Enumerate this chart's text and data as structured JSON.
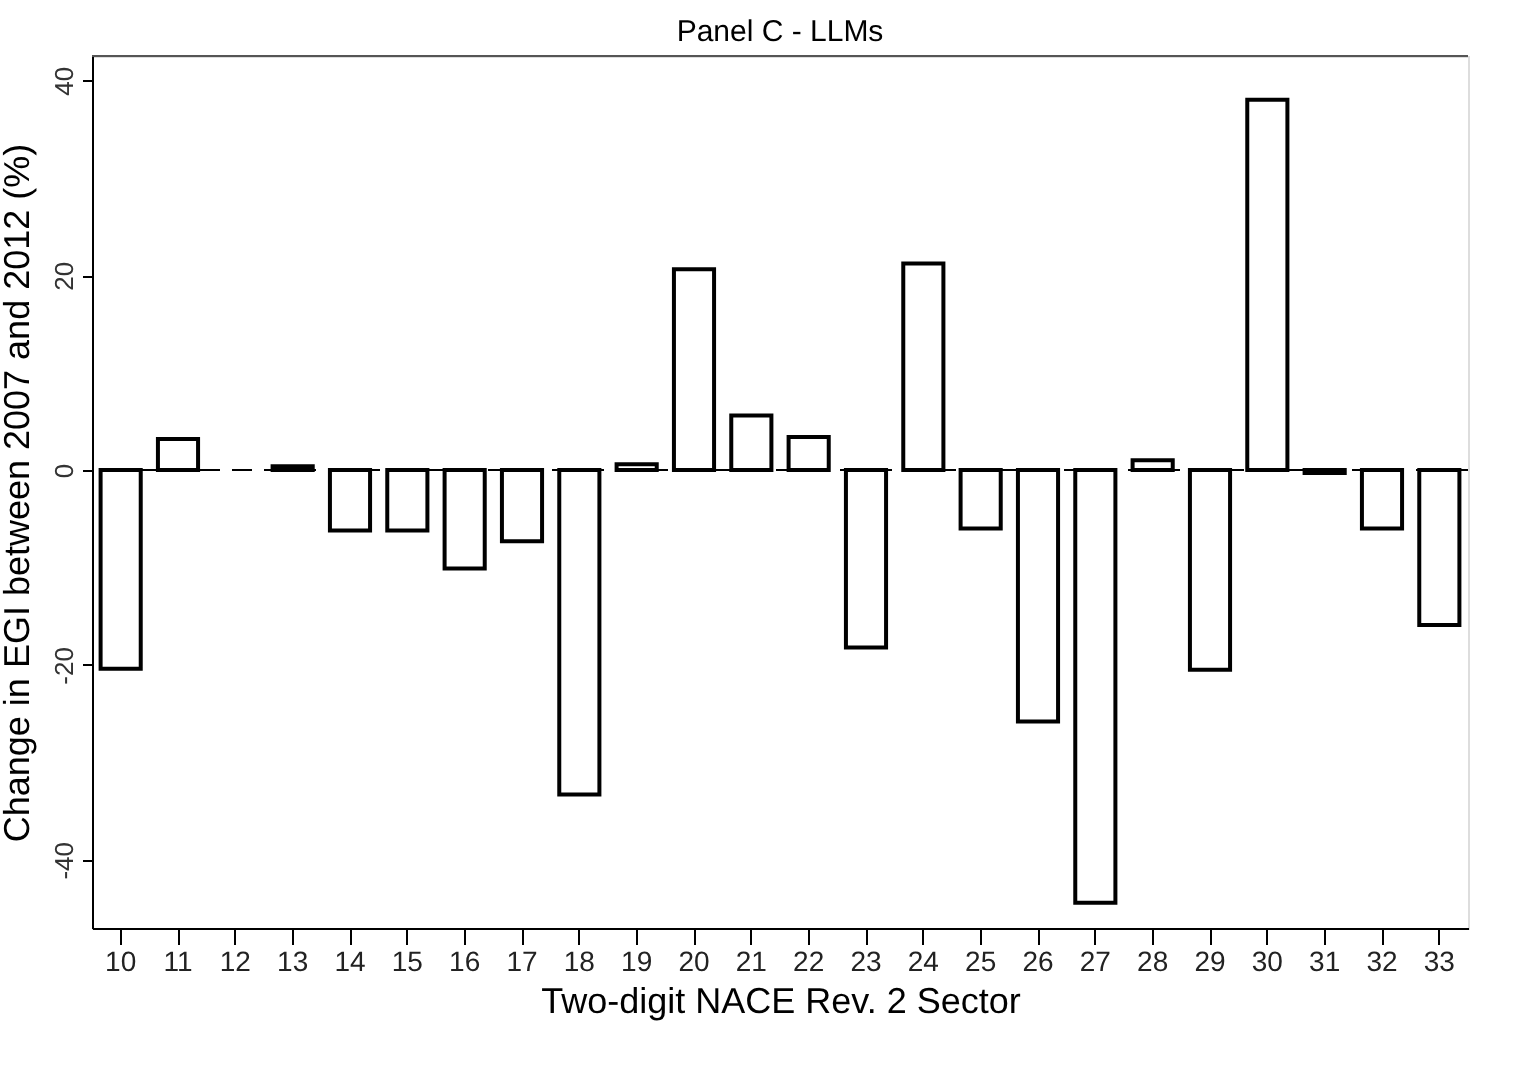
{
  "chart_data": {
    "type": "bar",
    "title": "Panel C - LLMs",
    "xlabel": "Two-digit NACE Rev. 2 Sector",
    "ylabel": "Change in EGI between 2007 and 2012 (%)",
    "categories": [
      "10",
      "11",
      "12",
      "13",
      "14",
      "15",
      "16",
      "17",
      "18",
      "19",
      "20",
      "21",
      "22",
      "23",
      "24",
      "25",
      "26",
      "27",
      "28",
      "29",
      "30",
      "31",
      "32",
      "33"
    ],
    "values": [
      -20.4,
      3.2,
      null,
      0.4,
      -6.2,
      -6.2,
      -10.1,
      -7.3,
      -33.3,
      0.6,
      20.6,
      5.6,
      3.4,
      -18.2,
      21.2,
      -6.0,
      -25.8,
      -44.4,
      1.0,
      -20.5,
      38.0,
      -0.3,
      -6.0,
      -15.9
    ],
    "color": "#ffffff",
    "ylim": [
      -47,
      42.5
    ],
    "yticks": [
      -40,
      -20,
      0,
      20,
      40
    ],
    "grid": false,
    "ref_lines": [
      {
        "axis": "y",
        "value": 0,
        "line_style": "dashed",
        "color": "#000000"
      }
    ]
  }
}
